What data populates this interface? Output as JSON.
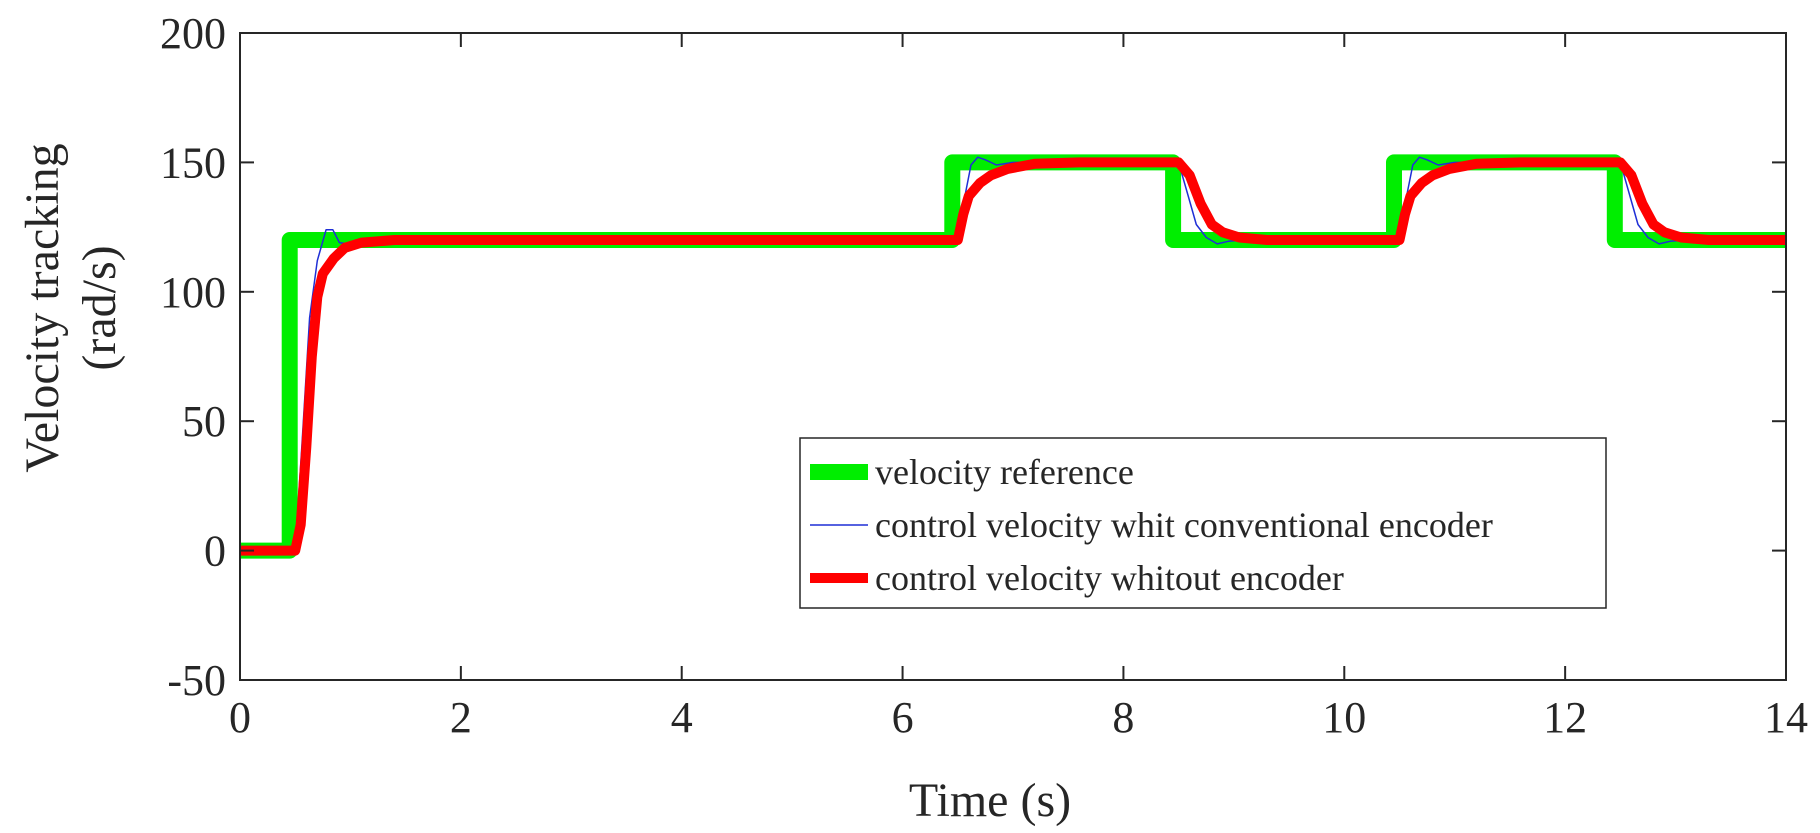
{
  "chart_data": {
    "type": "line",
    "title": "",
    "xlabel": "Time (s)",
    "ylabel_line1": "Velocity  tracking",
    "ylabel_line2": "(rad/s)",
    "xlim": [
      0,
      14
    ],
    "ylim": [
      -50,
      200
    ],
    "xticks": [
      0,
      2,
      4,
      6,
      8,
      10,
      12,
      14
    ],
    "yticks": [
      -50,
      0,
      50,
      100,
      150,
      200
    ],
    "xtick_labels": [
      "0",
      "2",
      "4",
      "6",
      "8",
      "10",
      "12",
      "14"
    ],
    "ytick_labels": [
      "-50",
      "0",
      "50",
      "100",
      "150",
      "200"
    ],
    "grid": false,
    "legend_position": "bottom-right",
    "series": [
      {
        "name": "velocity reference",
        "color": "#00ee00",
        "points": [
          [
            0,
            0
          ],
          [
            0.45,
            0
          ],
          [
            0.45,
            120
          ],
          [
            6.45,
            120
          ],
          [
            6.45,
            150
          ],
          [
            8.45,
            150
          ],
          [
            8.45,
            120
          ],
          [
            10.45,
            120
          ],
          [
            10.45,
            150
          ],
          [
            12.45,
            150
          ],
          [
            12.45,
            120
          ],
          [
            14,
            120
          ]
        ]
      },
      {
        "name": "control velocity whit conventional encoder",
        "color": "#1f2fd6",
        "points": [
          [
            0,
            0
          ],
          [
            0.5,
            0
          ],
          [
            0.56,
            40
          ],
          [
            0.63,
            90
          ],
          [
            0.7,
            112
          ],
          [
            0.78,
            124
          ],
          [
            0.84,
            124
          ],
          [
            0.9,
            119
          ],
          [
            0.97,
            118.5
          ],
          [
            1.05,
            120
          ],
          [
            6.5,
            120
          ],
          [
            6.56,
            136
          ],
          [
            6.62,
            149
          ],
          [
            6.68,
            152
          ],
          [
            6.75,
            151
          ],
          [
            6.85,
            149
          ],
          [
            7.0,
            150
          ],
          [
            8.5,
            150
          ],
          [
            8.58,
            138
          ],
          [
            8.66,
            126
          ],
          [
            8.75,
            121
          ],
          [
            8.85,
            118.5
          ],
          [
            8.95,
            119.5
          ],
          [
            9.1,
            120
          ],
          [
            10.5,
            120
          ],
          [
            10.56,
            136
          ],
          [
            10.62,
            149
          ],
          [
            10.68,
            152
          ],
          [
            10.75,
            151
          ],
          [
            10.85,
            149
          ],
          [
            11.0,
            150
          ],
          [
            12.5,
            150
          ],
          [
            12.58,
            138
          ],
          [
            12.66,
            126
          ],
          [
            12.75,
            121
          ],
          [
            12.85,
            118.5
          ],
          [
            12.95,
            119.5
          ],
          [
            13.1,
            120
          ],
          [
            14,
            120
          ]
        ]
      },
      {
        "name": "control velocity whitout encoder",
        "color": "#ff0000",
        "points": [
          [
            0,
            0
          ],
          [
            0.5,
            0
          ],
          [
            0.55,
            10
          ],
          [
            0.6,
            40
          ],
          [
            0.65,
            75
          ],
          [
            0.7,
            98
          ],
          [
            0.75,
            107
          ],
          [
            0.85,
            113
          ],
          [
            0.95,
            117
          ],
          [
            1.1,
            119
          ],
          [
            1.4,
            120
          ],
          [
            6.5,
            120
          ],
          [
            6.55,
            130
          ],
          [
            6.6,
            137
          ],
          [
            6.7,
            142
          ],
          [
            6.8,
            145
          ],
          [
            6.95,
            147.5
          ],
          [
            7.2,
            149.5
          ],
          [
            7.6,
            150
          ],
          [
            8.5,
            150
          ],
          [
            8.6,
            145
          ],
          [
            8.7,
            134
          ],
          [
            8.8,
            126
          ],
          [
            8.9,
            123
          ],
          [
            9.05,
            121
          ],
          [
            9.3,
            120
          ],
          [
            10.5,
            120
          ],
          [
            10.55,
            130
          ],
          [
            10.6,
            137
          ],
          [
            10.7,
            142
          ],
          [
            10.8,
            145
          ],
          [
            10.95,
            147.5
          ],
          [
            11.2,
            149.5
          ],
          [
            11.6,
            150
          ],
          [
            12.5,
            150
          ],
          [
            12.6,
            145
          ],
          [
            12.7,
            134
          ],
          [
            12.8,
            126
          ],
          [
            12.9,
            123
          ],
          [
            13.05,
            121
          ],
          [
            13.3,
            120
          ],
          [
            14,
            120
          ]
        ]
      }
    ]
  }
}
